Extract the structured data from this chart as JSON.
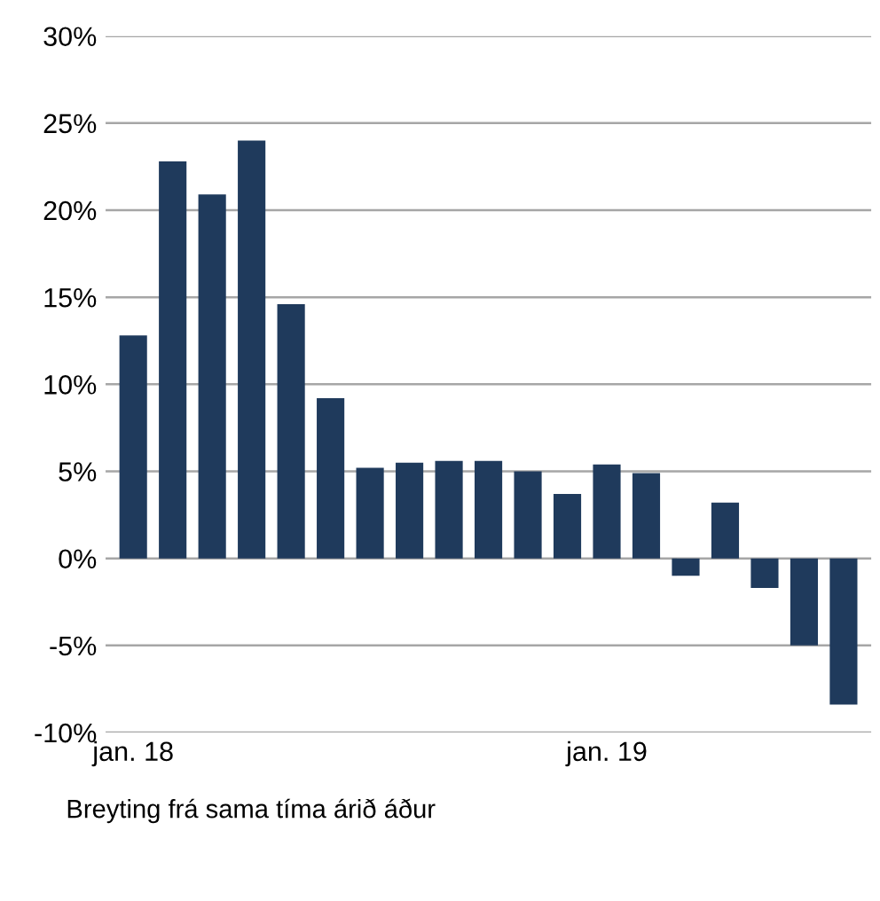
{
  "chart_data": {
    "type": "bar",
    "categories": [
      "jan. 18",
      null,
      null,
      null,
      null,
      null,
      null,
      null,
      null,
      null,
      null,
      null,
      "jan. 19",
      null,
      null,
      null,
      null,
      null,
      null
    ],
    "values": [
      12.8,
      22.8,
      20.9,
      24.0,
      14.6,
      9.2,
      5.2,
      5.5,
      5.6,
      5.6,
      5.0,
      3.7,
      5.4,
      4.9,
      -1.0,
      3.2,
      -1.7,
      -5.0,
      -8.4
    ],
    "color": "#1f3a5c",
    "ylim": [
      -10,
      30
    ],
    "yticks": [
      {
        "value": -10,
        "label": "-10%"
      },
      {
        "value": -5,
        "label": "-5%"
      },
      {
        "value": 0,
        "label": "0%"
      },
      {
        "value": 5,
        "label": "5%"
      },
      {
        "value": 10,
        "label": "10%"
      },
      {
        "value": 15,
        "label": "15%"
      },
      {
        "value": 20,
        "label": "20%"
      },
      {
        "value": 25,
        "label": "25%"
      },
      {
        "value": 30,
        "label": "30%"
      }
    ],
    "grid": "y",
    "annotations": [
      "Breyting frá sama tíma árið áður"
    ]
  }
}
